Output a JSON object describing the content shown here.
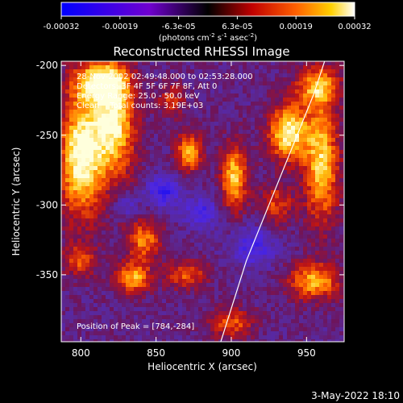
{
  "colorbar": {
    "ticks": [
      "-0.00032",
      "-0.00019",
      "-6.3e-05",
      "6.3e-05",
      "0.00019",
      "0.00032"
    ],
    "unit_main": "(photons cm",
    "unit_sup1": "-2",
    "unit_mid1": " s",
    "unit_sup2": "-1",
    "unit_mid2": " asec",
    "unit_sup3": "-2",
    "unit_end": ")",
    "range": [
      -0.00032,
      0.00032
    ]
  },
  "chart_data": {
    "type": "heatmap",
    "title": "Reconstructed RHESSI Image",
    "xlabel": "Heliocentric X (arcsec)",
    "ylabel": "Heliocentric Y (arcsec)",
    "xlim": [
      787,
      975
    ],
    "ylim": [
      -398,
      -197
    ],
    "x_ticks": [
      800,
      850,
      900,
      950
    ],
    "y_ticks": [
      -200,
      -250,
      -300,
      -350
    ],
    "annotations": [
      "28-Nov-2002 02:49:48.000 to 02:53:28.000",
      "Detectors: 3F 4F 5F 6F 7F 8F, Att 0",
      "Energy Range: 25.0 - 50.0 keV",
      "Clean    Total counts: 3.19E+03"
    ],
    "peak_label": "Position of Peak = [784,-284]",
    "peak_position": [
      784,
      -284
    ],
    "limb_curve": [
      [
        893,
        -398
      ],
      [
        910,
        -340
      ],
      [
        925,
        -300
      ],
      [
        940,
        -260
      ],
      [
        955,
        -220
      ],
      [
        962,
        -197
      ]
    ],
    "hot_regions": [
      {
        "x": 800,
        "y": -265,
        "sx": 10,
        "sy": 30,
        "amp": 1.0
      },
      {
        "x": 822,
        "y": -240,
        "sx": 10,
        "sy": 28,
        "amp": 0.9
      },
      {
        "x": 812,
        "y": -212,
        "sx": 12,
        "sy": 10,
        "amp": 0.75
      },
      {
        "x": 938,
        "y": -248,
        "sx": 9,
        "sy": 14,
        "amp": 0.95
      },
      {
        "x": 960,
        "y": -270,
        "sx": 8,
        "sy": 30,
        "amp": 0.8
      },
      {
        "x": 958,
        "y": -215,
        "sx": 10,
        "sy": 10,
        "amp": 0.7
      },
      {
        "x": 902,
        "y": -280,
        "sx": 6,
        "sy": 16,
        "amp": 0.8
      },
      {
        "x": 872,
        "y": -262,
        "sx": 6,
        "sy": 10,
        "amp": 0.7
      },
      {
        "x": 842,
        "y": -325,
        "sx": 8,
        "sy": 10,
        "amp": 0.6
      },
      {
        "x": 835,
        "y": -352,
        "sx": 8,
        "sy": 8,
        "amp": 0.7
      },
      {
        "x": 870,
        "y": -350,
        "sx": 10,
        "sy": 7,
        "amp": 0.5
      },
      {
        "x": 955,
        "y": -355,
        "sx": 12,
        "sy": 9,
        "amp": 0.7
      },
      {
        "x": 900,
        "y": -385,
        "sx": 10,
        "sy": 8,
        "amp": 0.5
      },
      {
        "x": 930,
        "y": -300,
        "sx": 8,
        "sy": 10,
        "amp": 0.45
      },
      {
        "x": 860,
        "y": -225,
        "sx": 6,
        "sy": 8,
        "amp": 0.4
      },
      {
        "x": 800,
        "y": -340,
        "sx": 8,
        "sy": 8,
        "amp": 0.45
      }
    ],
    "cold_regions": [
      {
        "x": 855,
        "y": -290,
        "sx": 8,
        "sy": 8,
        "amp": 0.5
      },
      {
        "x": 915,
        "y": -330,
        "sx": 10,
        "sy": 10,
        "amp": 0.4
      },
      {
        "x": 880,
        "y": -305,
        "sx": 8,
        "sy": 8,
        "amp": 0.4
      },
      {
        "x": 830,
        "y": -300,
        "sx": 6,
        "sy": 6,
        "amp": 0.3
      }
    ]
  },
  "footer": {
    "timestamp": "3-May-2022 18:10"
  }
}
